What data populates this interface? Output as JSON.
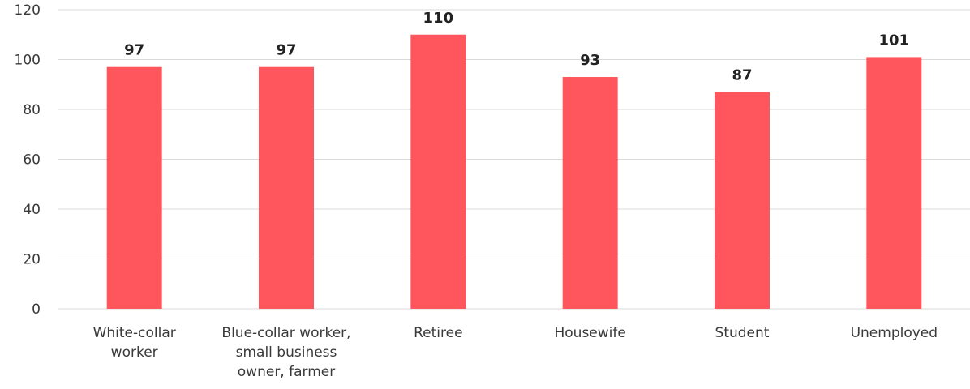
{
  "chart_data": {
    "type": "bar",
    "categories": [
      [
        "White-collar",
        "worker"
      ],
      [
        "Blue-collar worker,",
        "small business",
        "owner, farmer"
      ],
      [
        "Retiree"
      ],
      [
        "Housewife"
      ],
      [
        "Student"
      ],
      [
        "Unemployed"
      ]
    ],
    "values": [
      97,
      97,
      110,
      93,
      87,
      101
    ],
    "value_labels": [
      "97",
      "97",
      "110",
      "93",
      "87",
      "101"
    ],
    "y_ticks": [
      "0",
      "20",
      "40",
      "60",
      "80",
      "100",
      "120"
    ],
    "ylim": [
      0,
      120
    ],
    "grid": true,
    "legend": "none",
    "colors": {
      "bar": "#ff555c",
      "grid": "#d9d9d9"
    }
  }
}
